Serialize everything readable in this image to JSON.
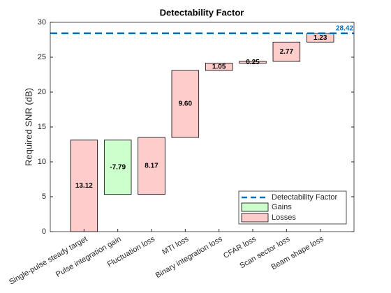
{
  "chart_data": {
    "type": "waterfall",
    "title": "Detectability Factor",
    "y_label": "Required SNR (dB)",
    "categories": [
      "Single-pulse steady target",
      "Pulse integration gain",
      "Fluctuation loss",
      "MTI loss",
      "Binary integration loss",
      "CFAR loss",
      "Scan sector loss",
      "Beam shape loss"
    ],
    "values": [
      13.12,
      -7.79,
      8.17,
      9.6,
      1.05,
      0.25,
      2.77,
      1.23
    ],
    "value_labels": [
      "13.12",
      "-7.79",
      "8.17",
      "9.60",
      "1.05",
      "0.25",
      "2.77",
      "1.23"
    ],
    "gains": {
      "name": "Gains",
      "color": "#ccffcc"
    },
    "losses": {
      "name": "Losses",
      "color": "#ffcccc"
    },
    "reference_line": {
      "name": "Detectability Factor",
      "value": 28.42,
      "color": "#0072bd"
    },
    "ylim": [
      0,
      30
    ],
    "yticks": [
      0,
      5,
      10,
      15,
      20,
      25,
      30
    ],
    "legend": "lower right"
  }
}
